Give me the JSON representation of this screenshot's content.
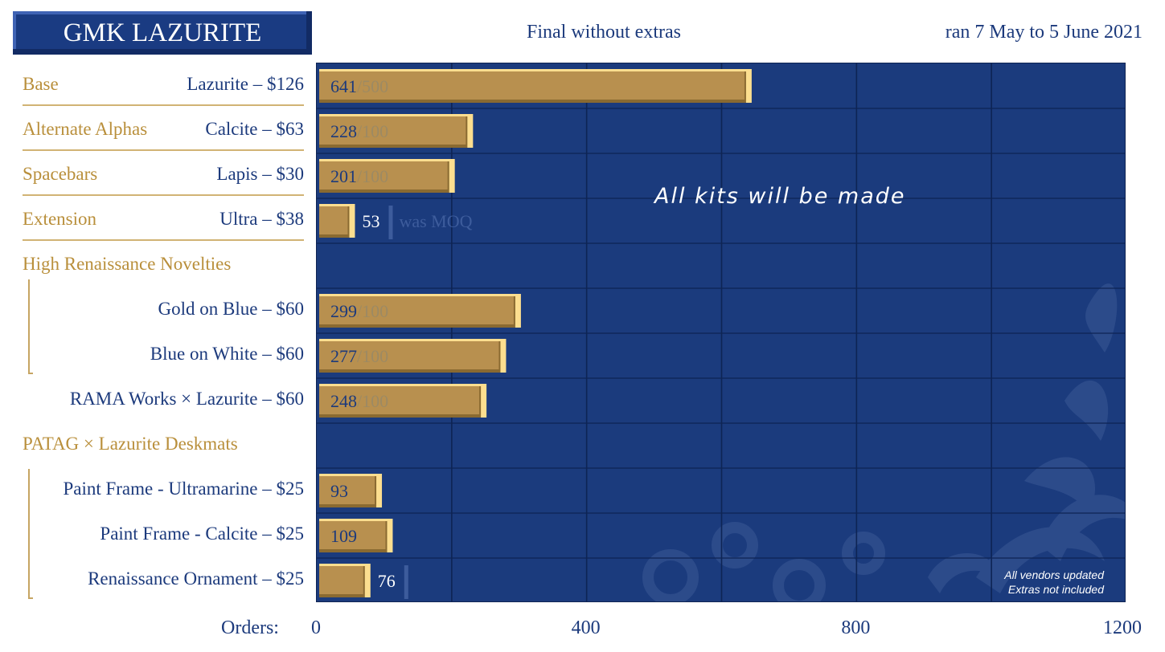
{
  "header": {
    "title": "GMK LAZURITE",
    "subtitle": "Final without extras",
    "run_dates": "ran 7 May to 5 June 2021"
  },
  "colors": {
    "plot_bg": "#1b3b7d",
    "bar": "#b8904f",
    "bar_highlight": "#fcde8f",
    "bar_shadow": "#8a6a31",
    "gold_text": "#b98f3b",
    "navy_text": "#1c3a7c"
  },
  "rows": [
    {
      "category": "Base",
      "product": "Lazurite – $126",
      "orders": 641,
      "moq": "500"
    },
    {
      "category": "Alternate Alphas",
      "product": "Calcite – $63",
      "orders": 228,
      "moq": "100"
    },
    {
      "category": "Spacebars",
      "product": "Lapis – $30",
      "orders": 201,
      "moq": "100"
    },
    {
      "category": "Extension",
      "product": "Ultra – $38",
      "orders": 53,
      "note": "was MOQ"
    },
    {
      "category": "High Renaissance Novelties",
      "product": ""
    },
    {
      "category": "",
      "product": "Gold on Blue – $60",
      "orders": 299,
      "moq": "100"
    },
    {
      "category": "",
      "product": "Blue on White – $60",
      "orders": 277,
      "moq": "100"
    },
    {
      "category": "",
      "product": "RAMA Works × Lazurite – $60",
      "orders": 248,
      "moq": "100"
    },
    {
      "category": "PATAG × Lazurite Deskmats",
      "product": ""
    },
    {
      "category": "",
      "product": "Paint Frame - Ultramarine – $25",
      "orders": 93
    },
    {
      "category": "",
      "product": "Paint Frame - Calcite – $25",
      "orders": 109
    },
    {
      "category": "",
      "product": "Renaissance Ornament – $25",
      "orders": 76
    }
  ],
  "chart_data": {
    "type": "bar",
    "orientation": "horizontal",
    "title": "GMK LAZURITE",
    "subtitle": "Final without extras",
    "xlabel": "Orders:",
    "xlim": [
      0,
      1200
    ],
    "xticks": [
      0,
      400,
      800,
      1200
    ],
    "grid": true,
    "categories": [
      "Lazurite – $126",
      "Calcite – $63",
      "Lapis – $30",
      "Ultra – $38",
      "High Renaissance Novelties",
      "Gold on Blue – $60",
      "Blue on White – $60",
      "RAMA Works × Lazurite – $60",
      "PATAG × Lazurite Deskmats",
      "Paint Frame - Ultramarine – $25",
      "Paint Frame - Calcite – $25",
      "Renaissance Ornament – $25"
    ],
    "values": [
      641,
      228,
      201,
      53,
      null,
      299,
      277,
      248,
      null,
      93,
      109,
      76
    ],
    "annotations": [
      "All kits will be made",
      "All vendors updated",
      "Extras not included"
    ]
  }
}
